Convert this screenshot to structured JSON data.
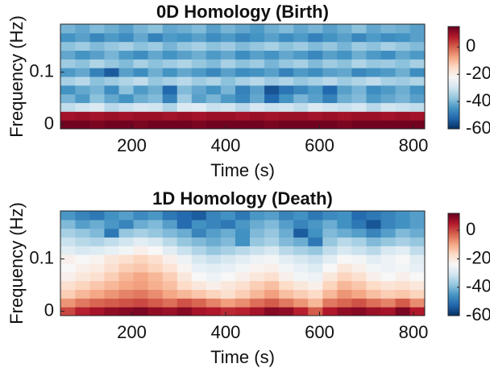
{
  "chart_data": [
    {
      "type": "heatmap",
      "title": "0D Homology (Birth)",
      "x_label": "Time (s)",
      "y_label": "Frequency (Hz)",
      "x": [
        64,
        95,
        126,
        157,
        188,
        219,
        250,
        281,
        312,
        343,
        374,
        405,
        436,
        467,
        498,
        529,
        560,
        591,
        622,
        653,
        684,
        715,
        746,
        777,
        808
      ],
      "y": [
        0,
        0.0167,
        0.0333,
        0.05,
        0.0667,
        0.0833,
        0.1,
        0.1167,
        0.1333,
        0.15,
        0.1667,
        0.1833
      ],
      "z": [
        [
          14,
          14,
          13,
          14,
          14,
          13,
          14,
          14,
          14,
          13,
          14,
          14,
          14,
          14,
          13,
          14,
          14,
          14,
          14,
          13,
          14,
          14,
          14,
          14,
          14
        ],
        [
          9,
          10,
          9,
          10,
          9,
          10,
          10,
          9,
          10,
          9,
          10,
          10,
          9,
          10,
          9,
          10,
          10,
          9,
          10,
          9,
          10,
          10,
          9,
          10,
          9
        ],
        [
          -32,
          -30,
          -28,
          -33,
          -31,
          -29,
          -30,
          -34,
          -28,
          -27,
          -31,
          -30,
          -33,
          -29,
          -31,
          -30,
          -32,
          -28,
          -30,
          -31,
          -29,
          -33,
          -30,
          -31,
          -32
        ],
        [
          -40,
          -44,
          -38,
          -42,
          -45,
          -41,
          -39,
          -48,
          -36,
          -43,
          -40,
          -44,
          -47,
          -42,
          -52,
          -45,
          -40,
          -43,
          -48,
          -41,
          -39,
          -44,
          -42,
          -40,
          -43
        ],
        [
          -45,
          -42,
          -40,
          -46,
          -38,
          -44,
          -41,
          -52,
          -39,
          -42,
          -45,
          -40,
          -48,
          -43,
          -55,
          -50,
          -47,
          -44,
          -52,
          -43,
          -40,
          -46,
          -44,
          -41,
          -45
        ],
        [
          -35,
          -33,
          -38,
          -36,
          -34,
          -32,
          -37,
          -35,
          -33,
          -36,
          -34,
          -38,
          -35,
          -33,
          -36,
          -34,
          -37,
          -35,
          -33,
          -36,
          -34,
          -32,
          -35,
          -36,
          -34
        ],
        [
          -44,
          -42,
          -48,
          -54,
          -43,
          -46,
          -41,
          -45,
          -42,
          -44,
          -47,
          -43,
          -46,
          -45,
          -43,
          -48,
          -44,
          -46,
          -43,
          -42,
          -47,
          -45,
          -44,
          -41,
          -46
        ],
        [
          -36,
          -38,
          -34,
          -37,
          -39,
          -35,
          -38,
          -36,
          -34,
          -37,
          -39,
          -35,
          -38,
          -36,
          -40,
          -37,
          -35,
          -39,
          -36,
          -38,
          -34,
          -37,
          -36,
          -38,
          -35
        ],
        [
          -42,
          -45,
          -43,
          -40,
          -44,
          -46,
          -42,
          -45,
          -43,
          -41,
          -44,
          -42,
          -46,
          -43,
          -45,
          -42,
          -44,
          -47,
          -43,
          -45,
          -41,
          -44,
          -46,
          -42,
          -44
        ],
        [
          -38,
          -36,
          -39,
          -37,
          -35,
          -38,
          -36,
          -40,
          -37,
          -35,
          -38,
          -36,
          -39,
          -37,
          -35,
          -38,
          -36,
          -39,
          -37,
          -40,
          -36,
          -38,
          -35,
          -37,
          -39
        ],
        [
          -45,
          -43,
          -47,
          -44,
          -46,
          -42,
          -48,
          -44,
          -45,
          -43,
          -46,
          -44,
          -47,
          -45,
          -43,
          -46,
          -44,
          -48,
          -45,
          -43,
          -47,
          -44,
          -46,
          -45,
          -43
        ],
        [
          -40,
          -42,
          -39,
          -41,
          -43,
          -40,
          -38,
          -42,
          -41,
          -39,
          -43,
          -40,
          -42,
          -44,
          -41,
          -39,
          -42,
          -40,
          -43,
          -41,
          -38,
          -42,
          -40,
          -41,
          -43
        ]
      ],
      "xlim": [
        48,
        824
      ],
      "ylim": [
        -0.0083,
        0.1917
      ],
      "xticks": [
        200,
        400,
        600,
        800
      ],
      "yticks": [
        0,
        0.1
      ],
      "clim": [
        -60,
        15
      ],
      "cticks": [
        0,
        -20,
        -40,
        -60
      ],
      "colormap": [
        "#053061",
        "#2166ac",
        "#4393c3",
        "#92c5de",
        "#d1e5f0",
        "#f7f7f7",
        "#fddbc7",
        "#f4a582",
        "#d6604d",
        "#b2182b",
        "#67001f"
      ]
    },
    {
      "type": "heatmap",
      "title": "1D Homology (Death)",
      "x_label": "Time (s)",
      "y_label": "Frequency (Hz)",
      "x": [
        64,
        95,
        126,
        157,
        188,
        219,
        250,
        281,
        312,
        343,
        374,
        405,
        436,
        467,
        498,
        529,
        560,
        591,
        622,
        653,
        684,
        715,
        746,
        777,
        808
      ],
      "y": [
        0,
        0.0167,
        0.0333,
        0.05,
        0.0667,
        0.0833,
        0.1,
        0.1167,
        0.1333,
        0.15,
        0.1667,
        0.1833
      ],
      "z": [
        [
          0,
          4,
          6,
          8,
          9,
          10,
          8,
          7,
          9,
          6,
          5,
          3,
          4,
          6,
          9,
          8,
          4,
          -2,
          5,
          8,
          9,
          7,
          6,
          10,
          5
        ],
        [
          -8,
          -5,
          -3,
          -2,
          -1,
          0,
          -2,
          -4,
          -1,
          -3,
          -6,
          -9,
          -7,
          -4,
          -2,
          -5,
          -8,
          -12,
          -5,
          -3,
          -1,
          -4,
          -6,
          -2,
          -7
        ],
        [
          -15,
          -12,
          -10,
          -8,
          -6,
          -5,
          -7,
          -10,
          -12,
          -14,
          -16,
          -18,
          -15,
          -12,
          -9,
          -13,
          -15,
          -17,
          -12,
          -8,
          -10,
          -13,
          -15,
          -14,
          -16
        ],
        [
          -18,
          -16,
          -14,
          -12,
          -10,
          -9,
          -11,
          -13,
          -17,
          -20,
          -22,
          -20,
          -18,
          -15,
          -13,
          -17,
          -20,
          -22,
          -16,
          -12,
          -14,
          -17,
          -19,
          -18,
          -20
        ],
        [
          -22,
          -20,
          -18,
          -15,
          -12,
          -10,
          -12,
          -15,
          -20,
          -24,
          -26,
          -24,
          -22,
          -20,
          -18,
          -22,
          -25,
          -26,
          -20,
          -16,
          -18,
          -22,
          -24,
          -22,
          -24
        ],
        [
          -24,
          -22,
          -21,
          -18,
          -15,
          -14,
          -16,
          -19,
          -23,
          -27,
          -28,
          -27,
          -25,
          -23,
          -22,
          -25,
          -27,
          -29,
          -24,
          -20,
          -22,
          -25,
          -26,
          -25,
          -27
        ],
        [
          -22,
          -24,
          -23,
          -20,
          -18,
          -16,
          -18,
          -22,
          -26,
          -30,
          -32,
          -30,
          -28,
          -26,
          -25,
          -28,
          -30,
          -32,
          -28,
          -24,
          -25,
          -28,
          -26,
          -24,
          -28
        ],
        [
          -28,
          -30,
          -29,
          -27,
          -25,
          -22,
          -24,
          -28,
          -32,
          -35,
          -38,
          -36,
          -34,
          -32,
          -30,
          -34,
          -36,
          -38,
          -33,
          -30,
          -32,
          -34,
          -30,
          -28,
          -33
        ],
        [
          -32,
          -34,
          -35,
          -33,
          -31,
          -28,
          -30,
          -34,
          -38,
          -40,
          -42,
          -40,
          -46,
          -38,
          -36,
          -40,
          -42,
          -50,
          -38,
          -34,
          -36,
          -40,
          -38,
          -36,
          -38
        ],
        [
          -36,
          -38,
          -40,
          -50,
          -38,
          -36,
          -38,
          -40,
          -42,
          -48,
          -44,
          -42,
          -46,
          -40,
          -38,
          -42,
          -54,
          -46,
          -40,
          -42,
          -44,
          -48,
          -44,
          -40,
          -42
        ],
        [
          -40,
          -44,
          -42,
          -45,
          -48,
          -42,
          -40,
          -44,
          -52,
          -46,
          -48,
          -50,
          -45,
          -42,
          -40,
          -44,
          -48,
          -45,
          -42,
          -46,
          -50,
          -55,
          -48,
          -46,
          -44
        ],
        [
          -45,
          -48,
          -50,
          -46,
          -44,
          -47,
          -45,
          -50,
          -52,
          -54,
          -48,
          -46,
          -50,
          -45,
          -44,
          -48,
          -46,
          -50,
          -47,
          -46,
          -52,
          -50,
          -48,
          -46,
          -44
        ]
      ],
      "xlim": [
        48,
        824
      ],
      "ylim": [
        -0.0083,
        0.1917
      ],
      "xticks": [
        200,
        400,
        600,
        800
      ],
      "yticks": [
        0,
        0.1
      ],
      "clim": [
        -60,
        12
      ],
      "cticks": [
        0,
        -20,
        -40,
        -60
      ],
      "colormap": [
        "#053061",
        "#2166ac",
        "#4393c3",
        "#92c5de",
        "#d1e5f0",
        "#f7f7f7",
        "#fddbc7",
        "#f4a582",
        "#d6604d",
        "#b2182b",
        "#67001f"
      ]
    }
  ]
}
